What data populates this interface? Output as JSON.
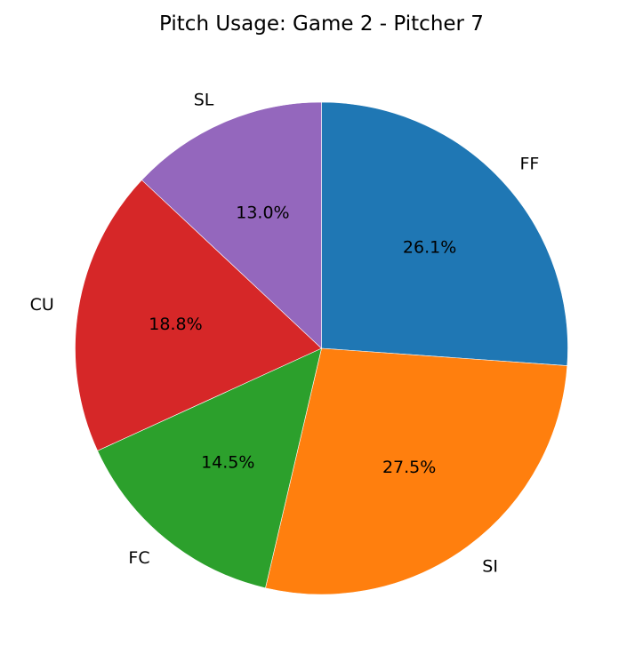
{
  "chart_data": {
    "type": "pie",
    "title": "Pitch Usage: Game 2 - Pitcher 7",
    "start_angle_deg": 90,
    "direction": "clockwise",
    "autopct_format": "%.1f%%",
    "slices": [
      {
        "label": "FF",
        "value": 26.1,
        "color": "#1f77b4"
      },
      {
        "label": "SI",
        "value": 27.5,
        "color": "#ff7f0e"
      },
      {
        "label": "FC",
        "value": 14.5,
        "color": "#2ca02c"
      },
      {
        "label": "CU",
        "value": 18.8,
        "color": "#d62728"
      },
      {
        "label": "SL",
        "value": 13.0,
        "color": "#9467bd"
      }
    ]
  }
}
